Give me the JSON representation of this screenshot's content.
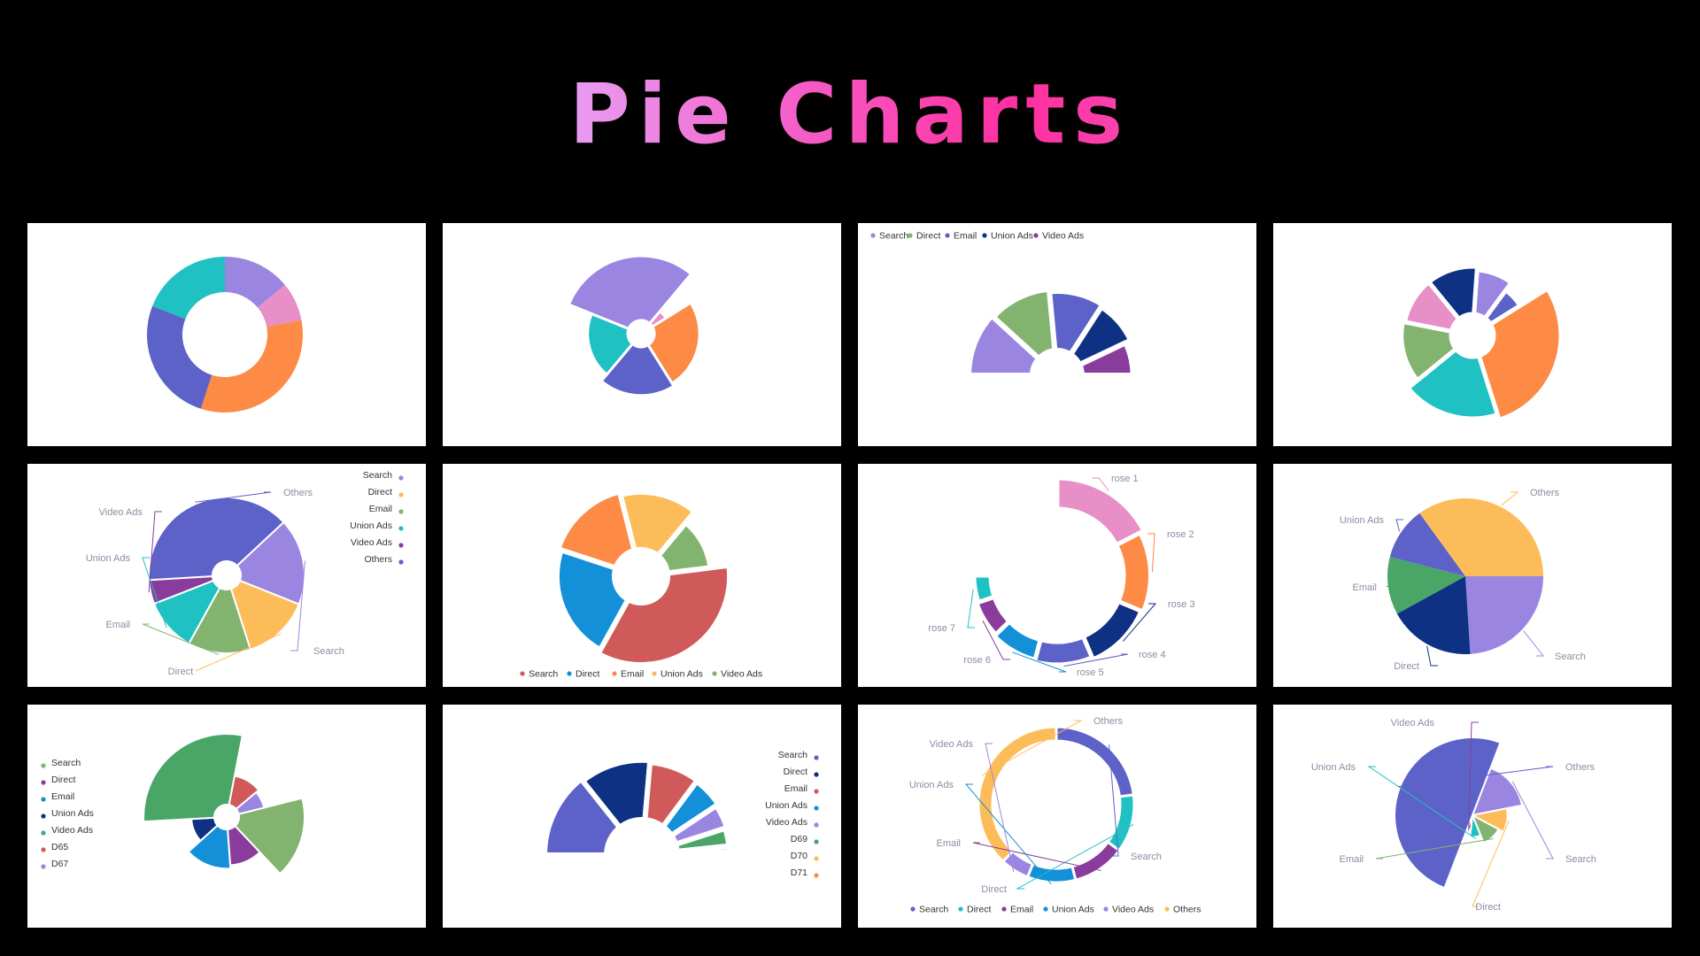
{
  "page": {
    "title": "Pie Charts",
    "background": "#000000"
  },
  "chart_data": [
    {
      "id": "p1",
      "type": "pie",
      "variant": "doughnut",
      "label_style": "none",
      "legend": "none",
      "slices": [
        {
          "name": "",
          "value": 14,
          "color": "#9a86e0"
        },
        {
          "name": "",
          "value": 8,
          "color": "#e78fc6"
        },
        {
          "name": "",
          "value": 33,
          "color": "#fd8a45"
        },
        {
          "name": "",
          "value": 26,
          "color": "#5d62c8"
        },
        {
          "name": "",
          "value": 19,
          "color": "#1fc1c3"
        }
      ]
    },
    {
      "id": "p2",
      "type": "pie",
      "variant": "rose-radius",
      "label_style": "none",
      "legend": "none",
      "slices": [
        {
          "name": "",
          "value": 5,
          "radius": 0.25,
          "color": "#e78fc6"
        },
        {
          "name": "",
          "value": 25,
          "radius": 0.7,
          "color": "#fd8a45"
        },
        {
          "name": "",
          "value": 20,
          "radius": 0.75,
          "color": "#5d62c8"
        },
        {
          "name": "",
          "value": 20,
          "radius": 0.62,
          "color": "#1fc1c3"
        },
        {
          "name": "",
          "value": 30,
          "radius": 1.0,
          "color": "#9a86e0"
        }
      ]
    },
    {
      "id": "p3",
      "type": "pie",
      "variant": "half-rose",
      "label_style": "none",
      "legend": "top-left",
      "slices": [
        {
          "name": "Search",
          "value": 20,
          "radius": 1.0,
          "color": "#9a86e0"
        },
        {
          "name": "Direct",
          "value": 20,
          "radius": 0.97,
          "color": "#82b46f"
        },
        {
          "name": "Email",
          "value": 18,
          "radius": 0.93,
          "color": "#5d62c8"
        },
        {
          "name": "Union Ads",
          "value": 15,
          "radius": 0.89,
          "color": "#0e3184"
        },
        {
          "name": "Video Ads",
          "value": 12,
          "radius": 0.8,
          "color": "#8a3c9c"
        }
      ]
    },
    {
      "id": "p4",
      "type": "pie",
      "variant": "rose-radius",
      "label_style": "none",
      "legend": "none",
      "slices": [
        {
          "name": "",
          "value": 9,
          "radius": 0.66,
          "color": "#9a86e0"
        },
        {
          "name": "",
          "value": 6,
          "radius": 0.52,
          "color": "#5d62c8"
        },
        {
          "name": "",
          "value": 29,
          "radius": 1.0,
          "color": "#fd8a45"
        },
        {
          "name": "",
          "value": 19,
          "radius": 0.92,
          "color": "#1fc1c3"
        },
        {
          "name": "",
          "value": 14,
          "radius": 0.74,
          "color": "#82b46f"
        },
        {
          "name": "",
          "value": 11,
          "radius": 0.71,
          "color": "#e78fc6"
        },
        {
          "name": "",
          "value": 12,
          "radius": 0.71,
          "color": "#0e3184"
        }
      ]
    },
    {
      "id": "p5",
      "type": "pie",
      "variant": "pie-labels",
      "label_style": "outside-leader",
      "legend": "right",
      "slices": [
        {
          "name": "Search",
          "value": 18,
          "color": "#9a86e0"
        },
        {
          "name": "Direct",
          "value": 14,
          "color": "#fdbc5a"
        },
        {
          "name": "Email",
          "value": 13,
          "color": "#82b46f"
        },
        {
          "name": "Union Ads",
          "value": 11,
          "color": "#1fc1c3"
        },
        {
          "name": "Video Ads",
          "value": 5,
          "color": "#8a3c9c"
        },
        {
          "name": "Others",
          "value": 39,
          "color": "#5d62c8"
        }
      ]
    },
    {
      "id": "p6",
      "type": "pie",
      "variant": "doughnut-rounded",
      "label_style": "none",
      "legend": "bottom",
      "slices": [
        {
          "name": "Search",
          "value": 35,
          "radius": 1.0,
          "color": "#d05a5a"
        },
        {
          "name": "Direct",
          "value": 22,
          "radius": 0.93,
          "color": "#1390d8"
        },
        {
          "name": "Email",
          "value": 16,
          "radius": 0.98,
          "color": "#fd8a45"
        },
        {
          "name": "Union Ads",
          "value": 15,
          "radius": 0.93,
          "color": "#fdbc5a"
        },
        {
          "name": "Video Ads",
          "value": 12,
          "radius": 0.7,
          "color": "#82b46f"
        }
      ]
    },
    {
      "id": "p7",
      "type": "pie",
      "variant": "rose-ring",
      "label_style": "outside-leader",
      "legend": "none",
      "slices": [
        {
          "name": "rose 1",
          "value": 40,
          "color": "#e78fc6"
        },
        {
          "name": "rose 2",
          "value": 32,
          "color": "#fd8a45"
        },
        {
          "name": "rose 3",
          "value": 28,
          "color": "#0e3184"
        },
        {
          "name": "rose 4",
          "value": 24,
          "color": "#5d62c8"
        },
        {
          "name": "rose 5",
          "value": 20,
          "color": "#1390d8"
        },
        {
          "name": "rose 6",
          "value": 16,
          "color": "#8a3c9c"
        },
        {
          "name": "rose 7",
          "value": 12,
          "color": "#1fc1c3"
        }
      ]
    },
    {
      "id": "p8",
      "type": "pie",
      "variant": "pie-labels",
      "label_style": "outside-leader",
      "legend": "none",
      "slices": [
        {
          "name": "Search",
          "value": 24,
          "color": "#9a86e0"
        },
        {
          "name": "Direct",
          "value": 18,
          "color": "#0e3184"
        },
        {
          "name": "Email",
          "value": 12,
          "color": "#49a666"
        },
        {
          "name": "Union Ads",
          "value": 11,
          "color": "#5d62c8"
        },
        {
          "name": "Others",
          "value": 35,
          "color": "#fdbc5a"
        }
      ]
    },
    {
      "id": "p9",
      "type": "pie",
      "variant": "rose-radius",
      "label_style": "none",
      "legend": "left",
      "slices": [
        {
          "name": "Search",
          "value": 14,
          "radius": 1.0,
          "color": "#82b46f"
        },
        {
          "name": "Direct",
          "value": 9,
          "radius": 0.55,
          "color": "#8a3c9c"
        },
        {
          "name": "Email",
          "value": 12,
          "radius": 0.6,
          "color": "#1390d8"
        },
        {
          "name": "Union Ads",
          "value": 9,
          "radius": 0.35,
          "color": "#0e3184"
        },
        {
          "name": "Video Ads",
          "value": 24,
          "radius": 1.08,
          "color": "#49a666"
        },
        {
          "name": "D65",
          "value": 9,
          "radius": 0.45,
          "color": "#d05a5a"
        },
        {
          "name": "D67",
          "value": 6,
          "radius": 0.4,
          "color": "#9a86e0"
        }
      ]
    },
    {
      "id": "p10",
      "type": "pie",
      "variant": "half-rose",
      "label_style": "none",
      "legend": "right",
      "slices": [
        {
          "name": "Search",
          "value": 26,
          "radius": 1.0,
          "color": "#5d62c8"
        },
        {
          "name": "Direct",
          "value": 22,
          "radius": 0.96,
          "color": "#0e3184"
        },
        {
          "name": "Email",
          "value": 16,
          "radius": 0.93,
          "color": "#d05a5a"
        },
        {
          "name": "Union Ads",
          "value": 10,
          "radius": 0.91,
          "color": "#1390d8"
        },
        {
          "name": "Video Ads",
          "value": 8,
          "radius": 0.87,
          "color": "#9a86e0"
        },
        {
          "name": "D69",
          "value": 6,
          "radius": 0.84,
          "color": "#49a666"
        },
        {
          "name": "D70",
          "value": 2,
          "radius": 0.84,
          "color": "#fdbc5a"
        },
        {
          "name": "D71",
          "value": 1,
          "radius": 0.84,
          "color": "#fd8a45"
        }
      ]
    },
    {
      "id": "p11",
      "type": "pie",
      "variant": "doughnut-labels",
      "label_style": "outside-leader",
      "legend": "bottom",
      "slices": [
        {
          "name": "Search",
          "value": 23,
          "color": "#5d62c8"
        },
        {
          "name": "Direct",
          "value": 12,
          "color": "#1fc1c3"
        },
        {
          "name": "Email",
          "value": 11,
          "color": "#8a3c9c"
        },
        {
          "name": "Union Ads",
          "value": 10,
          "color": "#1390d8"
        },
        {
          "name": "Video Ads",
          "value": 6,
          "color": "#9a86e0"
        },
        {
          "name": "Others",
          "value": 38,
          "color": "#fdbc5a"
        }
      ]
    },
    {
      "id": "p12",
      "type": "pie",
      "variant": "rose-radius",
      "label_style": "outside-leader",
      "legend": "none",
      "slices": [
        {
          "name": "Search",
          "value": 16,
          "radius": 0.65,
          "color": "#9a86e0"
        },
        {
          "name": "Direct",
          "value": 11,
          "radius": 0.45,
          "color": "#fdbc5a"
        },
        {
          "name": "Email",
          "value": 11,
          "radius": 0.38,
          "color": "#82b46f"
        },
        {
          "name": "Union Ads",
          "value": 8,
          "radius": 0.28,
          "color": "#1fc1c3"
        },
        {
          "name": "Video Ads",
          "value": 4,
          "radius": 0.18,
          "color": "#8a3c9c"
        },
        {
          "name": "Others",
          "value": 50,
          "radius": 1.0,
          "color": "#5d62c8"
        }
      ]
    }
  ]
}
